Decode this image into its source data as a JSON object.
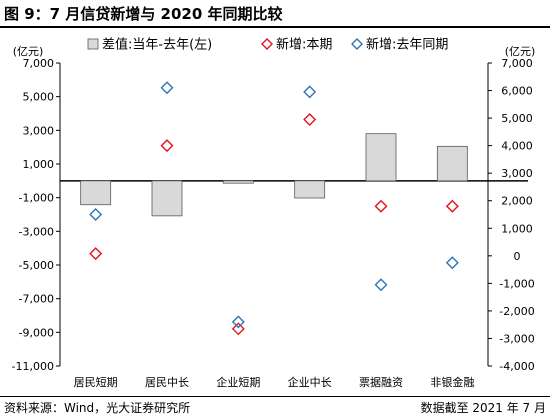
{
  "header": {
    "title": "图 9：7 月信贷新增与 2020 年同期比较"
  },
  "footer": {
    "source": "资料来源：Wind，光大证券研究所",
    "note": "数据截至 2021 年 7 月"
  },
  "chart_data": {
    "type": "bar",
    "categories": [
      "居民短期",
      "居民中长",
      "企业短期",
      "企业中长",
      "票据融资",
      "非银金融"
    ],
    "left_unit": "(亿元)",
    "right_unit": "(亿元)",
    "left_ylim": [
      -11000,
      7000
    ],
    "left_ticks": [
      7000,
      5000,
      3000,
      1000,
      -1000,
      -3000,
      -5000,
      -7000,
      -9000,
      -11000
    ],
    "left_tick_labels": [
      "7,000",
      "5,000",
      "3,000",
      "1,000",
      "-1,000",
      "-3,000",
      "-5,000",
      "-7,000",
      "-9,000",
      "-11,000"
    ],
    "right_ylim": [
      -4000,
      7000
    ],
    "right_ticks": [
      7000,
      6000,
      5000,
      4000,
      3000,
      2000,
      1000,
      0,
      -1000,
      -2000,
      -3000,
      -4000
    ],
    "right_tick_labels": [
      "7,000",
      "6,000",
      "5,000",
      "4,000",
      "3,000",
      "2,000",
      "1,000",
      "0",
      "-1,000",
      "-2,000",
      "-3,000",
      "-4,000"
    ],
    "series": [
      {
        "name": "差值:当年-去年(左)",
        "axis": "left",
        "type": "bar",
        "color": "#d9d9d9",
        "values": [
          -1420,
          -2080,
          -140,
          -1020,
          2800,
          2050
        ]
      },
      {
        "name": "新增:本期",
        "axis": "right",
        "type": "scatter",
        "color": "#e8101a",
        "values": [
          80,
          4000,
          -2650,
          4950,
          1800,
          1800
        ]
      },
      {
        "name": "新增:去年同期",
        "axis": "right",
        "type": "scatter",
        "color": "#2e75b6",
        "values": [
          1500,
          6100,
          -2400,
          5950,
          -1050,
          -250
        ]
      }
    ],
    "legend_position": "top",
    "grid": false
  }
}
